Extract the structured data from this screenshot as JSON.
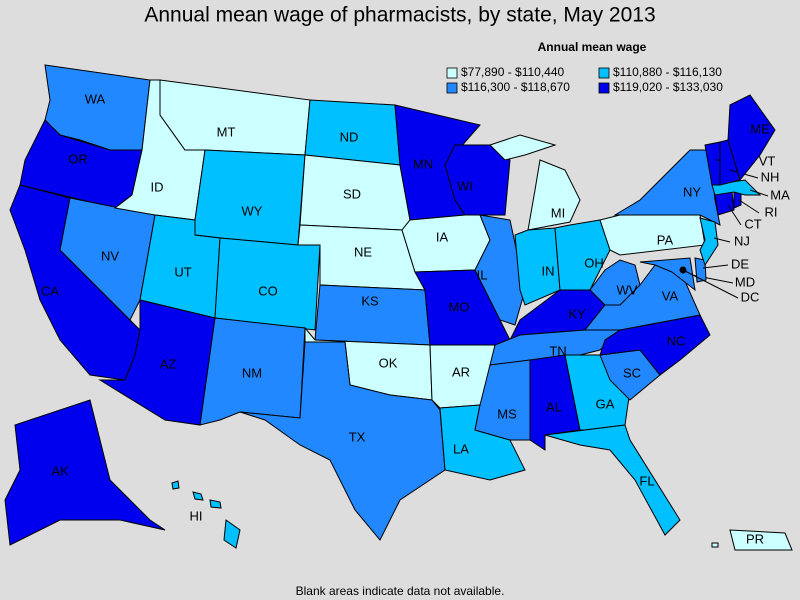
{
  "title": "Annual mean wage of pharmacists, by state, May 2013",
  "legend": {
    "title": "Annual mean wage",
    "items": [
      {
        "label": "$77,890 - $110,440",
        "color": "#ccffff"
      },
      {
        "label": "$110,880 - $116,130",
        "color": "#00c0ff"
      },
      {
        "label": "$116,300 - $118,670",
        "color": "#2288ff"
      },
      {
        "label": "$119,020 - $133,030",
        "color": "#0000ee"
      }
    ]
  },
  "states": [
    {
      "label": "WA",
      "color": "#2288ff"
    },
    {
      "label": "OR",
      "color": "#0000ee"
    },
    {
      "label": "CA",
      "color": "#0000ee"
    },
    {
      "label": "NV",
      "color": "#2288ff"
    },
    {
      "label": "ID",
      "color": "#ccffff"
    },
    {
      "label": "MT",
      "color": "#ccffff"
    },
    {
      "label": "WY",
      "color": "#00c0ff"
    },
    {
      "label": "UT",
      "color": "#00c0ff"
    },
    {
      "label": "CO",
      "color": "#00c0ff"
    },
    {
      "label": "AZ",
      "color": "#0000ee"
    },
    {
      "label": "NM",
      "color": "#2288ff"
    },
    {
      "label": "ND",
      "color": "#00c0ff"
    },
    {
      "label": "SD",
      "color": "#ccffff"
    },
    {
      "label": "NE",
      "color": "#ccffff"
    },
    {
      "label": "KS",
      "color": "#2288ff"
    },
    {
      "label": "OK",
      "color": "#ccffff"
    },
    {
      "label": "TX",
      "color": "#2288ff"
    },
    {
      "label": "MN",
      "color": "#0000ee"
    },
    {
      "label": "IA",
      "color": "#ccffff"
    },
    {
      "label": "MO",
      "color": "#0000ee"
    },
    {
      "label": "AR",
      "color": "#ccffff"
    },
    {
      "label": "LA",
      "color": "#00c0ff"
    },
    {
      "label": "WI",
      "color": "#0000ee"
    },
    {
      "label": "IL",
      "color": "#2288ff"
    },
    {
      "label": "MI",
      "color": "#ccffff"
    },
    {
      "label": "IN",
      "color": "#00c0ff"
    },
    {
      "label": "OH",
      "color": "#00c0ff"
    },
    {
      "label": "KY",
      "color": "#0000ee"
    },
    {
      "label": "TN",
      "color": "#2288ff"
    },
    {
      "label": "MS",
      "color": "#2288ff"
    },
    {
      "label": "AL",
      "color": "#0000ee"
    },
    {
      "label": "GA",
      "color": "#00c0ff"
    },
    {
      "label": "FL",
      "color": "#00c0ff"
    },
    {
      "label": "SC",
      "color": "#2288ff"
    },
    {
      "label": "NC",
      "color": "#0000ee"
    },
    {
      "label": "VA",
      "color": "#2288ff"
    },
    {
      "label": "WV",
      "color": "#2288ff"
    },
    {
      "label": "PA",
      "color": "#ccffff"
    },
    {
      "label": "MD",
      "color": "#2288ff"
    },
    {
      "label": "DE",
      "color": "#2288ff"
    },
    {
      "label": "NY",
      "color": "#2288ff"
    },
    {
      "label": "NJ",
      "color": "#00c0ff"
    },
    {
      "label": "CT",
      "color": "#0000ee"
    },
    {
      "label": "RI",
      "color": "#0000ee"
    },
    {
      "label": "MA",
      "color": "#00c0ff"
    },
    {
      "label": "VT",
      "color": "#0000ee"
    },
    {
      "label": "NH",
      "color": "#0000ee"
    },
    {
      "label": "ME",
      "color": "#0000ee"
    },
    {
      "label": "AK",
      "color": "#0000ee"
    },
    {
      "label": "HI",
      "color": "#00c0ff"
    },
    {
      "label": "PR",
      "color": "#ccffff"
    },
    {
      "label": "DC",
      "color": "#000000"
    }
  ],
  "footnote": "Blank areas indicate data not available."
}
